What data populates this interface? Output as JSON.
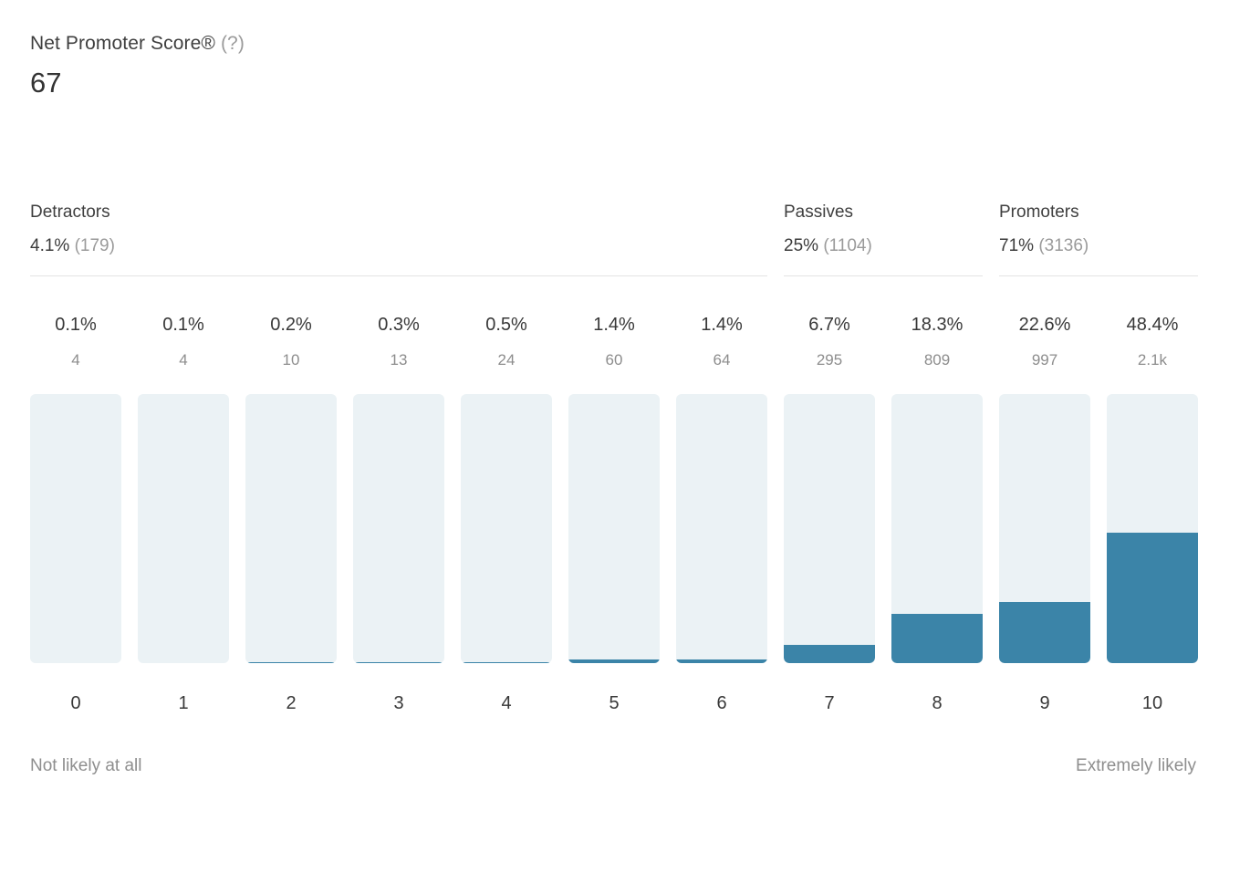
{
  "header": {
    "title": "Net Promoter Score®",
    "help_label": "(?)",
    "score": "67"
  },
  "groups": [
    {
      "name": "Detractors",
      "percent": "4.1%",
      "count": "(179)"
    },
    {
      "name": "Passives",
      "percent": "25%",
      "count": "(1104)"
    },
    {
      "name": "Promoters",
      "percent": "71%",
      "count": "(3136)"
    }
  ],
  "chart_data": {
    "type": "bar",
    "title": "Net Promoter Score®",
    "nps_score": 67,
    "categories": [
      "0",
      "1",
      "2",
      "3",
      "4",
      "5",
      "6",
      "7",
      "8",
      "9",
      "10"
    ],
    "series": [
      {
        "name": "percent_of_responses",
        "values": [
          0.1,
          0.1,
          0.2,
          0.3,
          0.5,
          1.4,
          1.4,
          6.7,
          18.3,
          22.6,
          48.4
        ]
      },
      {
        "name": "response_counts",
        "values": [
          4,
          4,
          10,
          13,
          24,
          60,
          64,
          295,
          809,
          997,
          2100
        ]
      }
    ],
    "percent_labels": [
      "0.1%",
      "0.1%",
      "0.2%",
      "0.3%",
      "0.5%",
      "1.4%",
      "1.4%",
      "6.7%",
      "18.3%",
      "22.6%",
      "48.4%"
    ],
    "count_labels": [
      "4",
      "4",
      "10",
      "13",
      "24",
      "60",
      "64",
      "295",
      "809",
      "997",
      "2.1k"
    ],
    "group_spans": {
      "Detractors": [
        0,
        6
      ],
      "Passives": [
        7,
        8
      ],
      "Promoters": [
        9,
        10
      ]
    },
    "xlabel": "",
    "ylabel": "",
    "ylim": [
      0,
      100
    ],
    "grid": false,
    "legend": "none",
    "bar_track_color": "#EBF2F5",
    "bar_fill_color": "#3B84A8"
  },
  "axis": {
    "left_label": "Not likely at all",
    "right_label": "Extremely likely"
  },
  "colors": {
    "text_dark": "#3b3b3b",
    "text_muted": "#9a9a9a",
    "divider": "#e4e4e4"
  }
}
